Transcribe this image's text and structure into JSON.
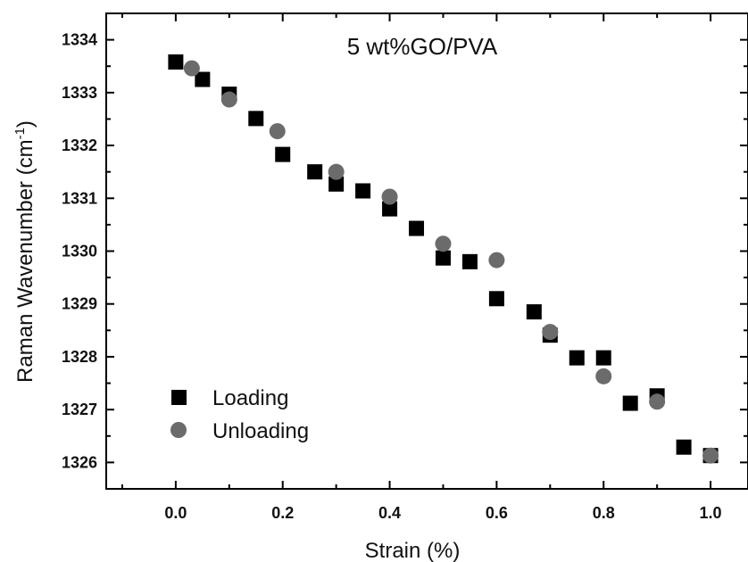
{
  "chart_data": {
    "type": "scatter",
    "title": "5 wt%GO/PVA",
    "xlabel": "Strain (%)",
    "ylabel_main": "Raman Wavenumber (cm",
    "ylabel_sup": "-1",
    "ylabel_close": ")",
    "xlim": [
      -0.13,
      1.07
    ],
    "ylim": [
      1325.5,
      1334.5
    ],
    "x_ticks": [
      0.0,
      0.2,
      0.4,
      0.6,
      0.8,
      1.0
    ],
    "x_tick_labels": [
      "0.0",
      "0.2",
      "0.4",
      "0.6",
      "0.8",
      "1.0"
    ],
    "y_ticks": [
      1326,
      1327,
      1328,
      1329,
      1330,
      1331,
      1332,
      1333,
      1334
    ],
    "y_tick_labels": [
      "1326",
      "1327",
      "1328",
      "1329",
      "1330",
      "1331",
      "1332",
      "1333",
      "1334"
    ],
    "legend_position": "bottom-left",
    "series": [
      {
        "name": "Loading",
        "marker": "square",
        "color": "#000000",
        "points": [
          [
            0.0,
            1333.58
          ],
          [
            0.05,
            1333.25
          ],
          [
            0.1,
            1332.97
          ],
          [
            0.15,
            1332.51
          ],
          [
            0.2,
            1331.83
          ],
          [
            0.26,
            1331.5
          ],
          [
            0.3,
            1331.27
          ],
          [
            0.35,
            1331.14
          ],
          [
            0.4,
            1330.8
          ],
          [
            0.45,
            1330.43
          ],
          [
            0.5,
            1329.87
          ],
          [
            0.55,
            1329.8
          ],
          [
            0.6,
            1329.1
          ],
          [
            0.67,
            1328.85
          ],
          [
            0.7,
            1328.41
          ],
          [
            0.75,
            1327.98
          ],
          [
            0.8,
            1327.98
          ],
          [
            0.85,
            1327.12
          ],
          [
            0.9,
            1327.26
          ],
          [
            0.95,
            1326.29
          ],
          [
            1.0,
            1326.13
          ]
        ]
      },
      {
        "name": "Unloading",
        "marker": "circle",
        "color": "#6b6b6b",
        "points": [
          [
            0.03,
            1333.46
          ],
          [
            0.1,
            1332.87
          ],
          [
            0.19,
            1332.27
          ],
          [
            0.3,
            1331.5
          ],
          [
            0.4,
            1331.03
          ],
          [
            0.5,
            1330.14
          ],
          [
            0.6,
            1329.83
          ],
          [
            0.7,
            1328.47
          ],
          [
            0.8,
            1327.63
          ],
          [
            0.9,
            1327.15
          ],
          [
            1.0,
            1326.13
          ]
        ]
      }
    ]
  }
}
